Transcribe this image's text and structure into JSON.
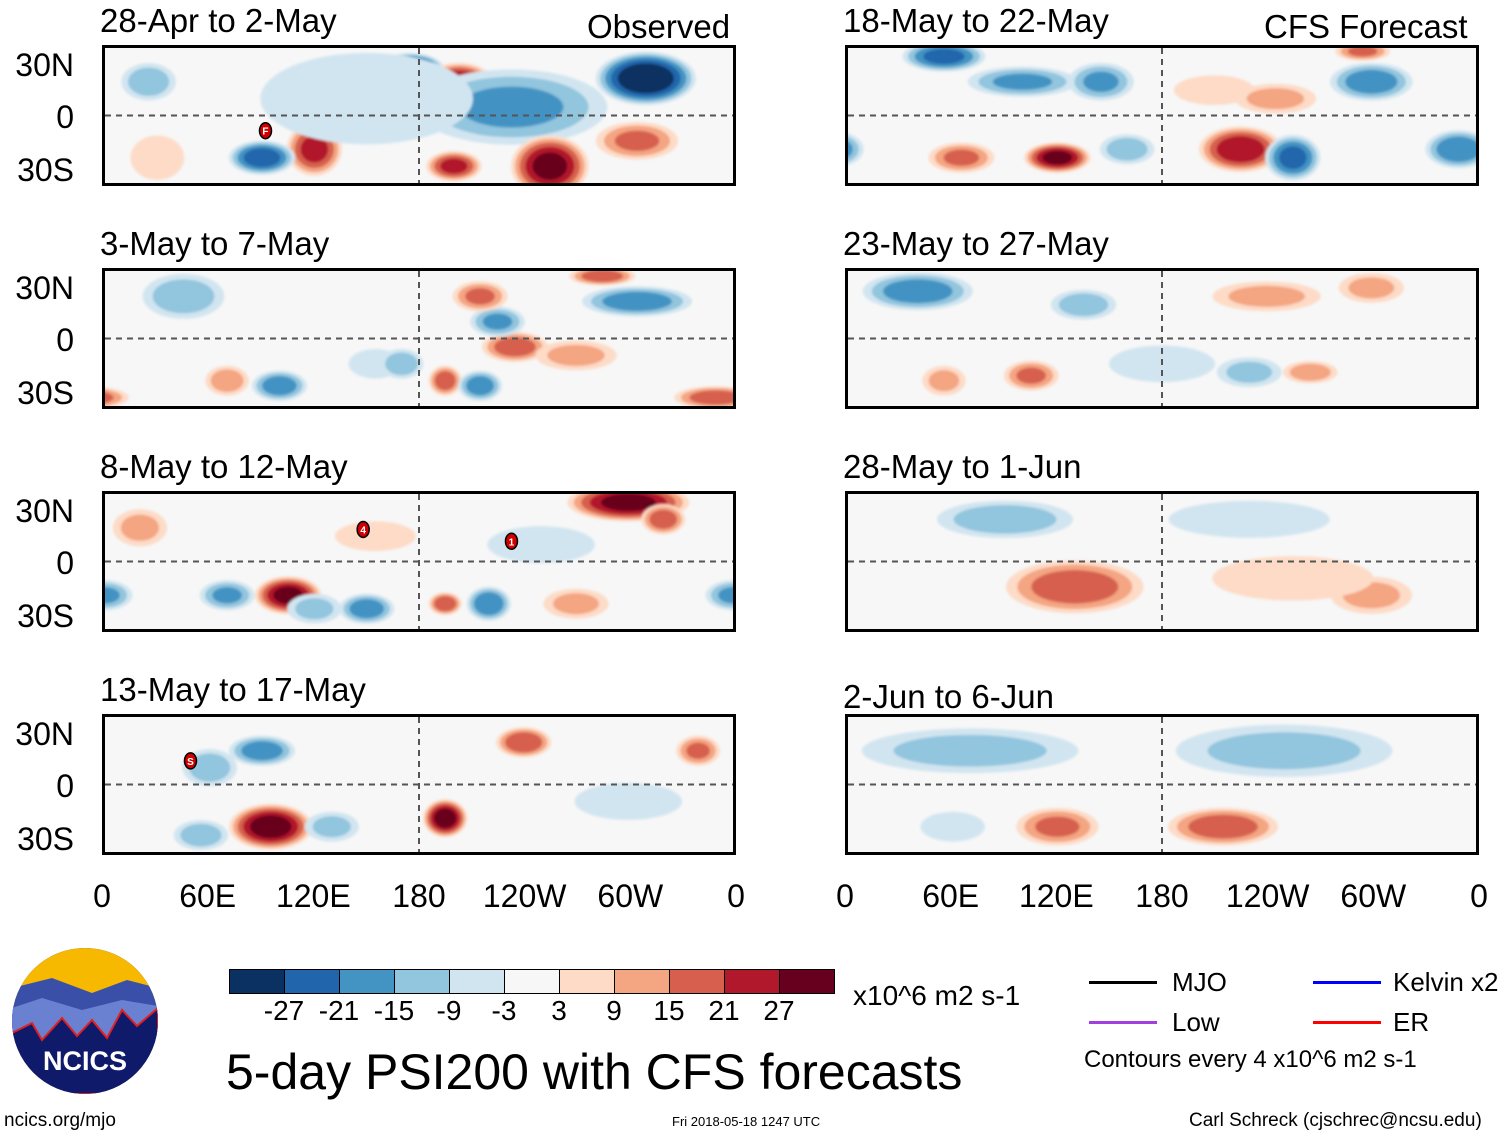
{
  "title": "5-day PSI200 with CFS forecasts",
  "website": "ncics.org/mjo",
  "timestamp": "Fri 2018-05-18 1247 UTC",
  "author": "Carl Schreck (cjschrec@ncsu.edu)",
  "logo_text": "NCICS",
  "column_labels": {
    "observed": "Observed",
    "forecast": "CFS Forecast"
  },
  "lat_labels": [
    "30N",
    "0",
    "30S"
  ],
  "lon_labels": [
    "0",
    "60E",
    "120E",
    "180",
    "120W",
    "60W",
    "0"
  ],
  "colorbar": {
    "colors": [
      "#0a3162",
      "#2166ac",
      "#4393c3",
      "#92c5de",
      "#d1e5f0",
      "#f7f7f7",
      "#fddbc7",
      "#f4a582",
      "#d6604d",
      "#b2182b",
      "#67001f"
    ],
    "labels": [
      "-27",
      "-21",
      "-15",
      "-9",
      "-3",
      "3",
      "9",
      "15",
      "21",
      "27"
    ],
    "units": "x10^6 m2 s-1"
  },
  "legend": {
    "items": [
      {
        "label": "MJO",
        "color": "#000000"
      },
      {
        "label": "Kelvin x2",
        "color": "#0000ff"
      },
      {
        "label": "Low",
        "color": "#a040e0"
      },
      {
        "label": "ER",
        "color": "#ff0000"
      }
    ],
    "contours": "Contours every 4 x10^6 m2 s-1"
  },
  "chart_data": {
    "type": "heatmap",
    "variable": "PSI200 anomaly",
    "units": "x10^6 m2 s-1",
    "lon_range": [
      0,
      360
    ],
    "lat_range": [
      -40,
      40
    ],
    "panels": [
      {
        "title": "28-Apr to 2-May",
        "kind": "observed",
        "anomalies": [
          [
            175,
            28,
            -30,
            12,
            8
          ],
          [
            203,
            20,
            25,
            12,
            10
          ],
          [
            310,
            22,
            -33,
            18,
            14
          ],
          [
            233,
            5,
            -15,
            35,
            20
          ],
          [
            120,
            -20,
            22,
            10,
            14
          ],
          [
            90,
            -25,
            -24,
            12,
            9
          ],
          [
            200,
            -30,
            22,
            10,
            8
          ],
          [
            255,
            -30,
            28,
            14,
            16
          ],
          [
            305,
            -15,
            15,
            15,
            10
          ],
          [
            150,
            10,
            -6,
            40,
            25
          ],
          [
            30,
            -25,
            8,
            10,
            12
          ],
          [
            25,
            20,
            -12,
            10,
            10
          ]
        ],
        "storms": [
          [
            92,
            -9,
            "F"
          ]
        ]
      },
      {
        "title": "3-May to 7-May",
        "kind": "observed",
        "anomalies": [
          [
            45,
            25,
            -12,
            15,
            12
          ],
          [
            155,
            -15,
            -8,
            10,
            8
          ],
          [
            70,
            -25,
            12,
            8,
            8
          ],
          [
            100,
            -28,
            -18,
            10,
            8
          ],
          [
            195,
            -25,
            18,
            6,
            8
          ],
          [
            215,
            -28,
            -18,
            8,
            8
          ],
          [
            235,
            -5,
            18,
            12,
            8
          ],
          [
            225,
            10,
            -15,
            10,
            8
          ],
          [
            215,
            25,
            15,
            10,
            8
          ],
          [
            305,
            22,
            -18,
            20,
            8
          ],
          [
            285,
            37,
            18,
            12,
            5
          ],
          [
            350,
            -35,
            18,
            15,
            6
          ],
          [
            170,
            -15,
            -12,
            8,
            8
          ],
          [
            270,
            -10,
            10,
            15,
            8
          ]
        ],
        "storms": []
      },
      {
        "title": "8-May to 12-May",
        "kind": "observed",
        "anomalies": [
          [
            105,
            -20,
            28,
            12,
            10
          ],
          [
            70,
            -20,
            -15,
            10,
            8
          ],
          [
            120,
            -28,
            -10,
            10,
            8
          ],
          [
            150,
            -28,
            -18,
            10,
            8
          ],
          [
            195,
            -25,
            20,
            6,
            6
          ],
          [
            220,
            -25,
            -20,
            8,
            9
          ],
          [
            270,
            -25,
            10,
            12,
            8
          ],
          [
            300,
            35,
            28,
            22,
            10
          ],
          [
            320,
            25,
            18,
            8,
            8
          ],
          [
            0,
            -20,
            -15,
            10,
            8
          ],
          [
            20,
            20,
            10,
            10,
            10
          ],
          [
            250,
            10,
            -8,
            20,
            10
          ],
          [
            155,
            15,
            8,
            15,
            8
          ]
        ],
        "storms": [
          [
            148,
            19,
            "4"
          ],
          [
            233,
            12,
            "1"
          ]
        ]
      },
      {
        "title": "13-May to 17-May",
        "kind": "observed",
        "anomalies": [
          [
            95,
            -25,
            30,
            15,
            12
          ],
          [
            195,
            -20,
            30,
            8,
            10
          ],
          [
            90,
            20,
            -18,
            12,
            8
          ],
          [
            60,
            10,
            -12,
            10,
            10
          ],
          [
            240,
            25,
            20,
            10,
            8
          ],
          [
            340,
            20,
            15,
            8,
            8
          ],
          [
            130,
            -25,
            -10,
            10,
            8
          ],
          [
            300,
            -10,
            -8,
            20,
            10
          ],
          [
            55,
            -30,
            -12,
            10,
            8
          ]
        ],
        "storms": [
          [
            49,
            14,
            "S"
          ]
        ]
      },
      {
        "title": "18-May to 22-May",
        "kind": "forecast",
        "anomalies": [
          [
            55,
            35,
            -22,
            15,
            8
          ],
          [
            100,
            20,
            -15,
            20,
            8
          ],
          [
            145,
            20,
            -15,
            12,
            10
          ],
          [
            300,
            20,
            -18,
            15,
            10
          ],
          [
            120,
            -25,
            28,
            12,
            8
          ],
          [
            65,
            -25,
            15,
            12,
            8
          ],
          [
            160,
            -20,
            -12,
            10,
            8
          ],
          [
            225,
            -20,
            25,
            15,
            12
          ],
          [
            255,
            -25,
            -22,
            10,
            12
          ],
          [
            350,
            -20,
            -20,
            12,
            10
          ],
          [
            210,
            15,
            8,
            15,
            8
          ],
          [
            245,
            10,
            10,
            15,
            8
          ],
          [
            295,
            38,
            15,
            10,
            5
          ]
        ],
        "storms": []
      },
      {
        "title": "23-May to 27-May",
        "kind": "forecast",
        "anomalies": [
          [
            40,
            28,
            -18,
            20,
            10
          ],
          [
            135,
            20,
            -12,
            12,
            8
          ],
          [
            105,
            -22,
            15,
            10,
            8
          ],
          [
            55,
            -25,
            10,
            8,
            8
          ],
          [
            230,
            -20,
            -10,
            12,
            8
          ],
          [
            265,
            -20,
            12,
            10,
            6
          ],
          [
            240,
            25,
            10,
            20,
            8
          ],
          [
            300,
            30,
            10,
            12,
            8
          ],
          [
            180,
            -15,
            -6,
            20,
            10
          ]
        ],
        "storms": []
      },
      {
        "title": "28-May to 1-Jun",
        "kind": "forecast",
        "anomalies": [
          [
            90,
            25,
            -12,
            25,
            10
          ],
          [
            130,
            -15,
            18,
            25,
            14
          ],
          [
            230,
            25,
            -8,
            30,
            10
          ],
          [
            300,
            -20,
            10,
            15,
            10
          ],
          [
            255,
            -10,
            8,
            30,
            12
          ]
        ],
        "storms": []
      },
      {
        "title": "2-Jun to 6-Jun",
        "kind": "forecast",
        "anomalies": [
          [
            70,
            20,
            -10,
            40,
            12
          ],
          [
            250,
            20,
            -10,
            40,
            14
          ],
          [
            120,
            -25,
            15,
            15,
            10
          ],
          [
            215,
            -25,
            18,
            20,
            10
          ],
          [
            60,
            -25,
            -8,
            12,
            8
          ]
        ],
        "storms": []
      }
    ]
  }
}
